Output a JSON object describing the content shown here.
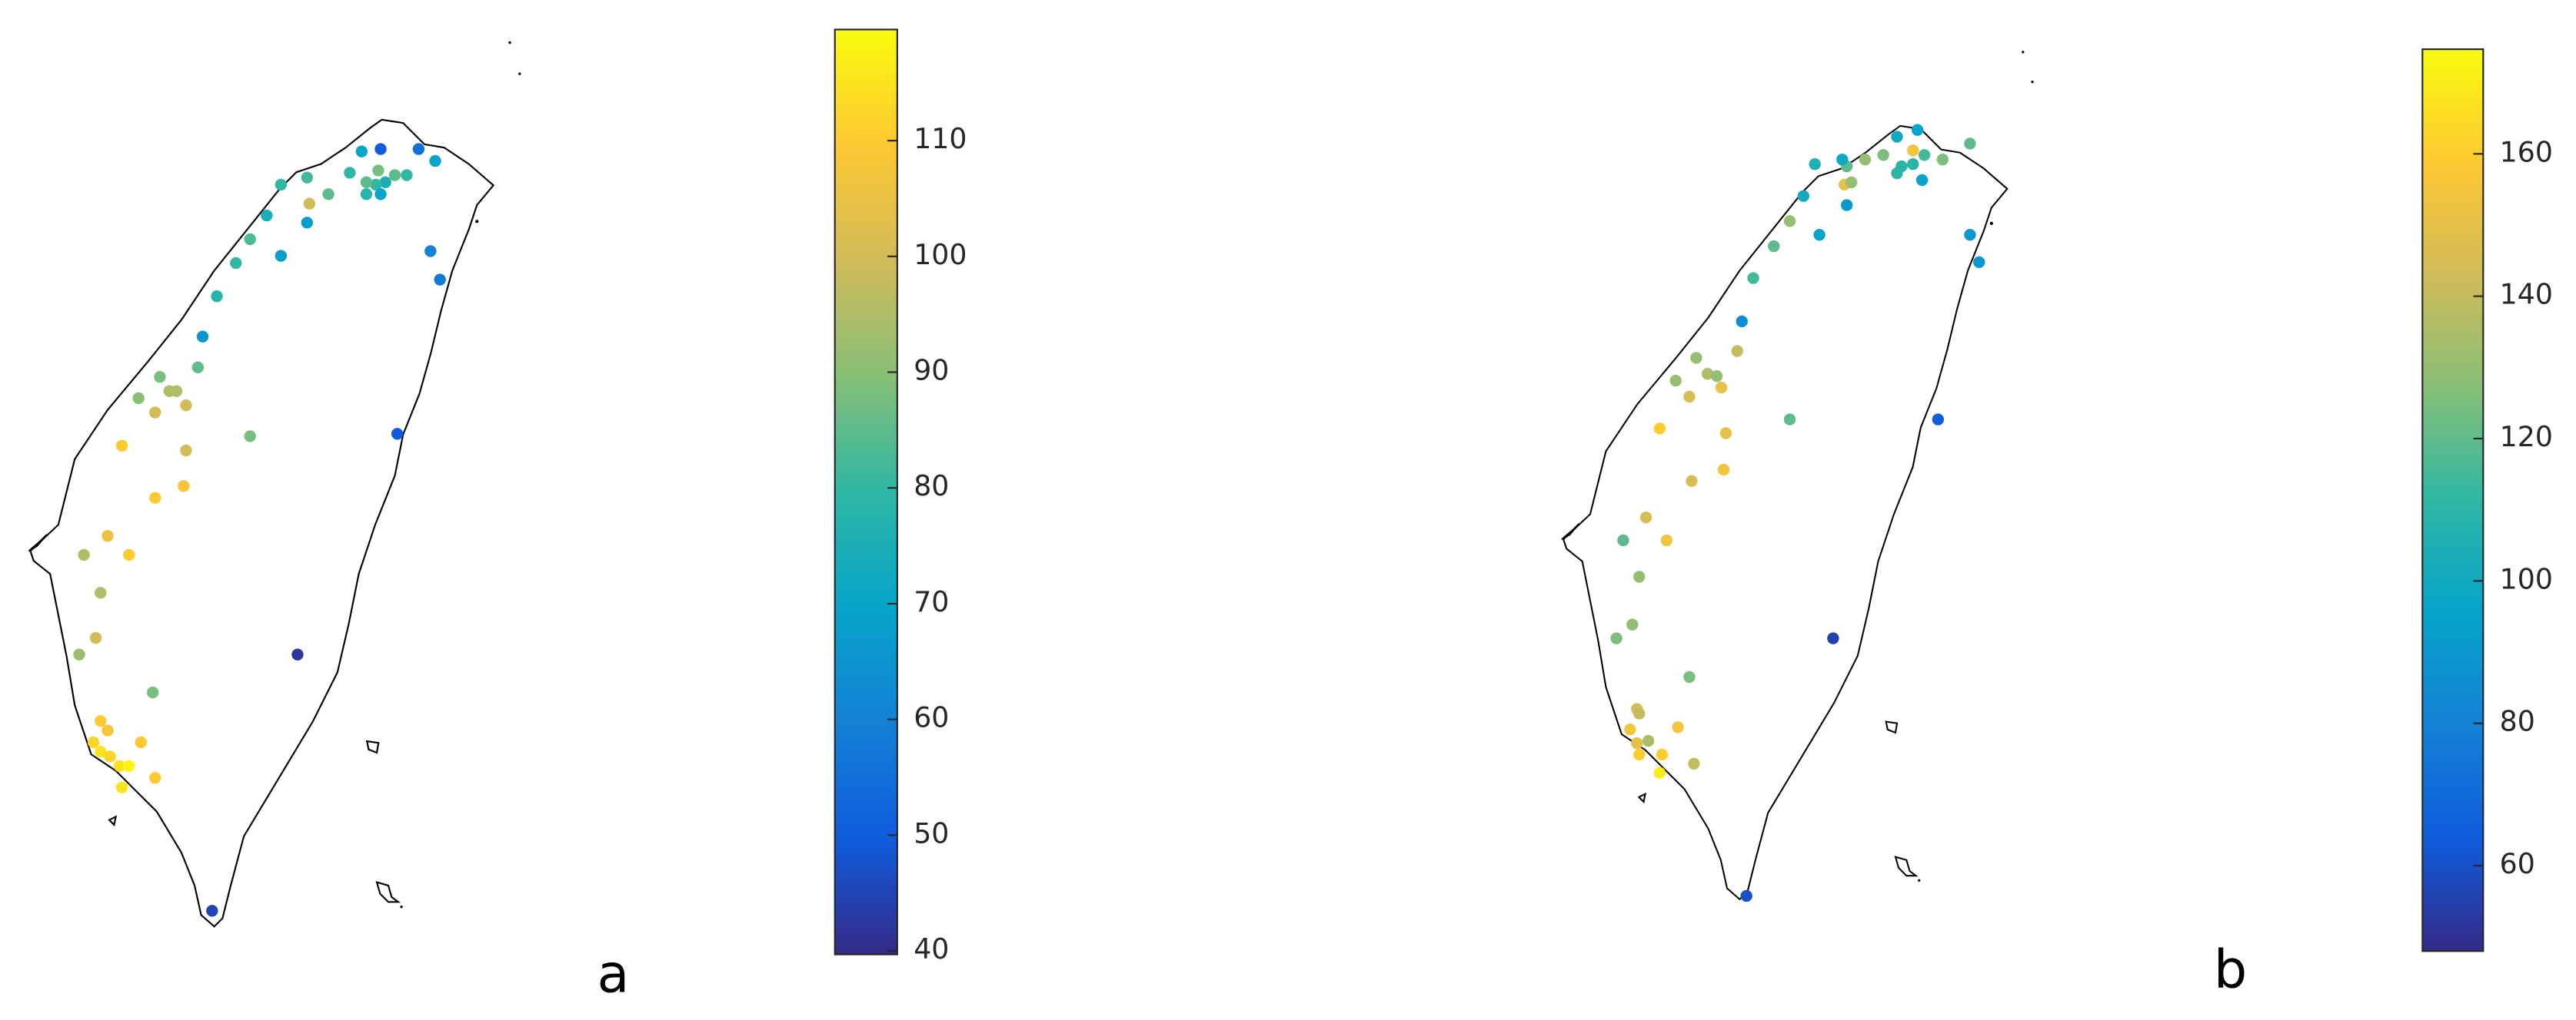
{
  "chart_data": [
    {
      "type": "scatter",
      "label": "a",
      "xlim": [
        119.92,
        122.41
      ],
      "ylim": [
        21.79,
        25.66
      ],
      "clim": [
        39.7,
        119.6
      ],
      "cticks": [
        40,
        50,
        60,
        70,
        80,
        90,
        100,
        110
      ],
      "x": [
        121.52,
        121.44,
        121.68,
        121.75,
        121.63,
        121.58,
        121.51,
        121.54,
        121.5,
        121.46,
        121.52,
        121.46,
        121.39,
        121.3,
        121.22,
        121.21,
        121.1,
        121.21,
        121.1,
        121.04,
        120.97,
        120.91,
        120.83,
        120.77,
        120.75,
        120.59,
        120.5,
        120.63,
        120.66,
        120.7,
        120.57,
        121.73,
        121.77,
        121.59,
        120.97,
        120.43,
        120.7,
        120.69,
        120.57,
        120.37,
        120.46,
        120.27,
        120.34,
        120.32,
        120.25,
        120.56,
        121.17,
        120.34,
        120.37,
        120.31,
        120.34,
        120.38,
        120.42,
        120.46,
        120.51,
        120.57,
        120.43,
        120.81
      ],
      "y": [
        25.17,
        25.16,
        25.17,
        25.12,
        25.06,
        25.06,
        25.08,
        25.03,
        25.02,
        25.03,
        24.98,
        24.98,
        25.07,
        24.98,
        24.94,
        25.05,
        25.02,
        24.86,
        24.72,
        24.89,
        24.79,
        24.69,
        24.55,
        24.38,
        24.25,
        24.21,
        24.12,
        24.15,
        24.15,
        24.09,
        24.06,
        24.74,
        24.62,
        23.97,
        23.96,
        23.92,
        23.9,
        23.75,
        23.7,
        23.54,
        23.46,
        23.46,
        23.3,
        23.11,
        23.04,
        22.88,
        23.04,
        22.76,
        22.72,
        22.67,
        22.63,
        22.61,
        22.57,
        22.57,
        22.67,
        22.52,
        22.48,
        21.96
      ],
      "values": [
        50,
        70,
        55,
        70,
        80,
        85,
        88,
        75,
        80,
        85,
        70,
        78,
        80,
        85,
        100,
        82,
        80,
        68,
        68,
        75,
        83,
        80,
        78,
        65,
        85,
        88,
        90,
        95,
        95,
        100,
        100,
        60,
        58,
        50,
        88,
        110,
        100,
        108,
        110,
        105,
        110,
        95,
        95,
        100,
        92,
        88,
        42,
        110,
        108,
        112,
        115,
        112,
        115,
        118,
        110,
        110,
        115,
        45
      ]
    },
    {
      "type": "scatter",
      "label": "b",
      "xlim": [
        119.92,
        122.41
      ],
      "ylim": [
        21.79,
        25.66
      ],
      "clim": [
        48,
        174.7
      ],
      "cticks": [
        60,
        80,
        100,
        120,
        140,
        160
      ],
      "x": [
        121.6,
        121.51,
        121.58,
        121.83,
        121.71,
        121.63,
        121.53,
        121.58,
        121.51,
        121.62,
        121.45,
        121.37,
        121.29,
        121.27,
        121.15,
        121.1,
        121.28,
        121.31,
        121.04,
        120.97,
        121.17,
        121.29,
        120.88,
        120.83,
        120.81,
        120.63,
        120.54,
        120.68,
        120.72,
        120.74,
        120.6,
        121.83,
        121.87,
        121.69,
        121.04,
        120.47,
        120.76,
        120.75,
        120.61,
        120.41,
        120.5,
        120.31,
        120.38,
        120.35,
        120.28,
        120.6,
        121.23,
        120.37,
        120.38,
        120.34,
        120.37,
        120.42,
        120.38,
        120.48,
        120.55,
        120.62,
        120.47,
        120.85
      ],
      "y": [
        25.27,
        25.24,
        25.18,
        25.21,
        25.14,
        25.16,
        25.11,
        25.12,
        25.08,
        25.05,
        25.16,
        25.14,
        25.11,
        25.14,
        25.12,
        24.98,
        25.03,
        25.04,
        24.87,
        24.76,
        24.81,
        24.94,
        24.62,
        24.43,
        24.3,
        24.27,
        24.17,
        24.2,
        24.19,
        24.14,
        24.1,
        24.81,
        24.69,
        24.0,
        24.0,
        23.96,
        23.94,
        23.78,
        23.73,
        23.57,
        23.47,
        23.47,
        23.31,
        23.1,
        23.04,
        22.87,
        23.04,
        22.73,
        22.71,
        22.64,
        22.58,
        22.59,
        22.53,
        22.53,
        22.65,
        22.49,
        22.45,
        21.91
      ],
      "values": [
        95,
        100,
        155,
        120,
        125,
        115,
        110,
        110,
        110,
        95,
        125,
        130,
        120,
        100,
        105,
        100,
        150,
        130,
        130,
        120,
        95,
        90,
        115,
        85,
        140,
        130,
        130,
        135,
        130,
        150,
        145,
        90,
        90,
        65,
        120,
        160,
        150,
        155,
        145,
        145,
        155,
        120,
        130,
        130,
        125,
        125,
        55,
        145,
        140,
        155,
        150,
        135,
        160,
        160,
        155,
        140,
        170,
        60
      ]
    }
  ]
}
